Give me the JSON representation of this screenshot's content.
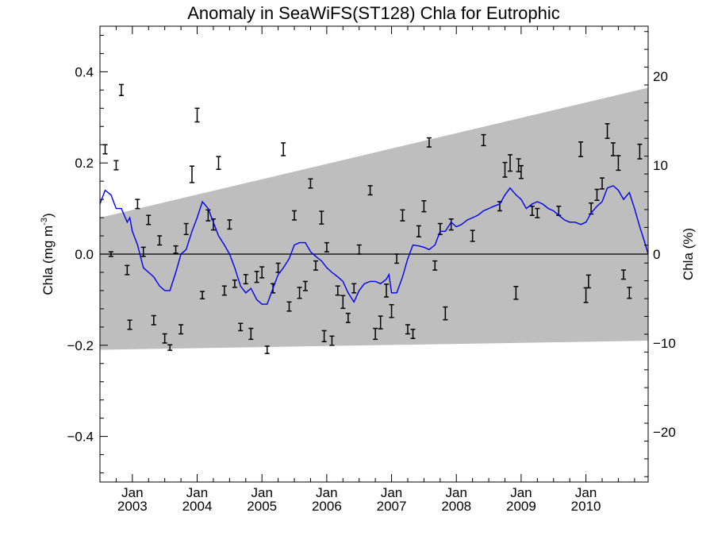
{
  "chart_data": {
    "type": "line",
    "title": "Anomaly in SeaWiFS(ST128) Chla for Eutrophic",
    "ylabel_left": "Chla (mg m",
    "ylabel_left_sup": "-3",
    "ylabel_left_close": ")",
    "ylabel_right": "Chla (%)",
    "xlim": [
      2002.5,
      2010.96
    ],
    "ylim_left": [
      -0.5,
      0.5
    ],
    "ylim_right": [
      -25.6,
      25.6
    ],
    "grid": false,
    "x_ticks": [
      {
        "x": 2003.0,
        "month": "Jan",
        "year": "2003"
      },
      {
        "x": 2004.0,
        "month": "Jan",
        "year": "2004"
      },
      {
        "x": 2005.0,
        "month": "Jan",
        "year": "2005"
      },
      {
        "x": 2006.0,
        "month": "Jan",
        "year": "2006"
      },
      {
        "x": 2007.0,
        "month": "Jan",
        "year": "2007"
      },
      {
        "x": 2008.0,
        "month": "Jan",
        "year": "2008"
      },
      {
        "x": 2009.0,
        "month": "Jan",
        "year": "2009"
      },
      {
        "x": 2010.0,
        "month": "Jan",
        "year": "2010"
      }
    ],
    "y_ticks_left": [
      {
        "v": -0.4,
        "label": "−0.4"
      },
      {
        "v": -0.2,
        "label": "−0.2"
      },
      {
        "v": 0.0,
        "label": "0.0"
      },
      {
        "v": 0.2,
        "label": "0.2"
      },
      {
        "v": 0.4,
        "label": "0.4"
      }
    ],
    "y_ticks_right": [
      {
        "v": -20,
        "label": "−20"
      },
      {
        "v": -10,
        "label": "−10"
      },
      {
        "v": 0,
        "label": "0"
      },
      {
        "v": 10,
        "label": "10"
      },
      {
        "v": 20,
        "label": "20"
      }
    ],
    "trend_band": {
      "x": [
        2002.5,
        2010.96
      ],
      "upper": [
        0.08,
        0.365
      ],
      "lower": [
        -0.21,
        -0.19
      ]
    },
    "zero_line": 0.0,
    "series": [
      {
        "type": "line",
        "color": "#0000ee",
        "x": [
          2002.5,
          2002.58,
          2002.67,
          2002.75,
          2002.83,
          2002.92,
          2002.96,
          2003.0,
          2003.08,
          2003.17,
          2003.25,
          2003.33,
          2003.42,
          2003.5,
          2003.58,
          2003.67,
          2003.75,
          2003.83,
          2003.92,
          2004.0,
          2004.08,
          2004.17,
          2004.25,
          2004.33,
          2004.42,
          2004.5,
          2004.58,
          2004.67,
          2004.75,
          2004.83,
          2004.92,
          2005.0,
          2005.08,
          2005.17,
          2005.25,
          2005.33,
          2005.42,
          2005.5,
          2005.58,
          2005.67,
          2005.75,
          2005.83,
          2005.92,
          2006.0,
          2006.08,
          2006.17,
          2006.25,
          2006.33,
          2006.42,
          2006.5,
          2006.58,
          2006.67,
          2006.75,
          2006.83,
          2006.92,
          2006.96,
          2007.0,
          2007.08,
          2007.17,
          2007.25,
          2007.33,
          2007.42,
          2007.5,
          2007.58,
          2007.67,
          2007.75,
          2007.83,
          2007.92,
          2008.0,
          2008.08,
          2008.17,
          2008.25,
          2008.33,
          2008.42,
          2008.5,
          2008.58,
          2008.67,
          2008.75,
          2008.83,
          2008.92,
          2009.0,
          2009.08,
          2009.17,
          2009.25,
          2009.33,
          2009.42,
          2009.5,
          2009.58,
          2009.67,
          2009.75,
          2009.83,
          2009.92,
          2010.0,
          2010.08,
          2010.17,
          2010.25,
          2010.33,
          2010.42,
          2010.5,
          2010.58,
          2010.67,
          2010.75,
          2010.83,
          2010.92,
          2010.96
        ],
        "y": [
          0.11,
          0.14,
          0.13,
          0.1,
          0.1,
          0.07,
          0.08,
          0.05,
          0.02,
          -0.03,
          -0.04,
          -0.05,
          -0.07,
          -0.08,
          -0.08,
          -0.04,
          0.0,
          0.01,
          0.05,
          0.08,
          0.115,
          0.1,
          0.07,
          0.04,
          0.02,
          0.0,
          -0.03,
          -0.07,
          -0.085,
          -0.075,
          -0.1,
          -0.11,
          -0.11,
          -0.075,
          -0.045,
          -0.03,
          -0.01,
          0.02,
          0.025,
          0.025,
          0.005,
          -0.005,
          -0.015,
          -0.03,
          -0.04,
          -0.05,
          -0.06,
          -0.085,
          -0.105,
          -0.08,
          -0.065,
          -0.06,
          -0.06,
          -0.065,
          -0.055,
          -0.045,
          -0.085,
          -0.085,
          -0.05,
          -0.01,
          0.02,
          0.018,
          0.015,
          0.01,
          0.02,
          0.05,
          0.05,
          0.07,
          0.06,
          0.065,
          0.075,
          0.08,
          0.085,
          0.095,
          0.1,
          0.105,
          0.11,
          0.13,
          0.145,
          0.13,
          0.12,
          0.1,
          0.11,
          0.115,
          0.11,
          0.1,
          0.095,
          0.085,
          0.075,
          0.07,
          0.07,
          0.065,
          0.07,
          0.09,
          0.105,
          0.115,
          0.145,
          0.15,
          0.14,
          0.12,
          0.135,
          0.1,
          0.06,
          0.02,
          0.0
        ]
      },
      {
        "type": "errorbar",
        "color": "#000000",
        "points": [
          {
            "x": 2002.58,
            "y": 0.23,
            "err": 0.01
          },
          {
            "x": 2002.67,
            "y": 0.0,
            "err": 0.005
          },
          {
            "x": 2002.75,
            "y": 0.195,
            "err": 0.01
          },
          {
            "x": 2002.83,
            "y": 0.36,
            "err": 0.012
          },
          {
            "x": 2002.92,
            "y": -0.035,
            "err": 0.01
          },
          {
            "x": 2002.96,
            "y": -0.155,
            "err": 0.01
          },
          {
            "x": 2003.08,
            "y": 0.11,
            "err": 0.01
          },
          {
            "x": 2003.17,
            "y": 0.005,
            "err": 0.01
          },
          {
            "x": 2003.25,
            "y": 0.075,
            "err": 0.01
          },
          {
            "x": 2003.33,
            "y": -0.145,
            "err": 0.01
          },
          {
            "x": 2003.42,
            "y": 0.03,
            "err": 0.01
          },
          {
            "x": 2003.5,
            "y": -0.185,
            "err": 0.01
          },
          {
            "x": 2003.58,
            "y": -0.205,
            "err": 0.006
          },
          {
            "x": 2003.67,
            "y": 0.01,
            "err": 0.008
          },
          {
            "x": 2003.75,
            "y": -0.165,
            "err": 0.01
          },
          {
            "x": 2003.83,
            "y": 0.055,
            "err": 0.012
          },
          {
            "x": 2003.92,
            "y": 0.175,
            "err": 0.018
          },
          {
            "x": 2004.0,
            "y": 0.305,
            "err": 0.015
          },
          {
            "x": 2004.08,
            "y": -0.09,
            "err": 0.008
          },
          {
            "x": 2004.17,
            "y": 0.085,
            "err": 0.012
          },
          {
            "x": 2004.25,
            "y": 0.065,
            "err": 0.012
          },
          {
            "x": 2004.33,
            "y": 0.2,
            "err": 0.014
          },
          {
            "x": 2004.42,
            "y": -0.08,
            "err": 0.01
          },
          {
            "x": 2004.5,
            "y": 0.065,
            "err": 0.01
          },
          {
            "x": 2004.58,
            "y": -0.065,
            "err": 0.008
          },
          {
            "x": 2004.67,
            "y": -0.16,
            "err": 0.008
          },
          {
            "x": 2004.75,
            "y": -0.055,
            "err": 0.01
          },
          {
            "x": 2004.83,
            "y": -0.175,
            "err": 0.012
          },
          {
            "x": 2004.92,
            "y": -0.05,
            "err": 0.012
          },
          {
            "x": 2005.0,
            "y": -0.04,
            "err": 0.012
          },
          {
            "x": 2005.08,
            "y": -0.21,
            "err": 0.008
          },
          {
            "x": 2005.17,
            "y": -0.075,
            "err": 0.01
          },
          {
            "x": 2005.25,
            "y": -0.03,
            "err": 0.01
          },
          {
            "x": 2005.33,
            "y": 0.23,
            "err": 0.014
          },
          {
            "x": 2005.42,
            "y": -0.115,
            "err": 0.01
          },
          {
            "x": 2005.5,
            "y": 0.085,
            "err": 0.01
          },
          {
            "x": 2005.58,
            "y": -0.085,
            "err": 0.012
          },
          {
            "x": 2005.67,
            "y": -0.07,
            "err": 0.01
          },
          {
            "x": 2005.75,
            "y": 0.155,
            "err": 0.01
          },
          {
            "x": 2005.83,
            "y": -0.025,
            "err": 0.01
          },
          {
            "x": 2005.92,
            "y": 0.08,
            "err": 0.014
          },
          {
            "x": 2005.96,
            "y": -0.18,
            "err": 0.012
          },
          {
            "x": 2006.0,
            "y": 0.015,
            "err": 0.01
          },
          {
            "x": 2006.08,
            "y": -0.19,
            "err": 0.01
          },
          {
            "x": 2006.17,
            "y": -0.08,
            "err": 0.01
          },
          {
            "x": 2006.25,
            "y": -0.105,
            "err": 0.014
          },
          {
            "x": 2006.33,
            "y": -0.14,
            "err": 0.01
          },
          {
            "x": 2006.42,
            "y": -0.075,
            "err": 0.01
          },
          {
            "x": 2006.5,
            "y": 0.01,
            "err": 0.01
          },
          {
            "x": 2006.67,
            "y": 0.14,
            "err": 0.01
          },
          {
            "x": 2006.75,
            "y": -0.175,
            "err": 0.012
          },
          {
            "x": 2006.83,
            "y": -0.15,
            "err": 0.014
          },
          {
            "x": 2006.92,
            "y": -0.08,
            "err": 0.014
          },
          {
            "x": 2007.0,
            "y": -0.125,
            "err": 0.014
          },
          {
            "x": 2007.08,
            "y": -0.01,
            "err": 0.01
          },
          {
            "x": 2007.17,
            "y": 0.085,
            "err": 0.012
          },
          {
            "x": 2007.25,
            "y": -0.165,
            "err": 0.01
          },
          {
            "x": 2007.33,
            "y": -0.175,
            "err": 0.01
          },
          {
            "x": 2007.42,
            "y": 0.05,
            "err": 0.012
          },
          {
            "x": 2007.5,
            "y": 0.105,
            "err": 0.012
          },
          {
            "x": 2007.58,
            "y": 0.245,
            "err": 0.01
          },
          {
            "x": 2007.67,
            "y": -0.025,
            "err": 0.01
          },
          {
            "x": 2007.75,
            "y": 0.055,
            "err": 0.012
          },
          {
            "x": 2007.83,
            "y": -0.13,
            "err": 0.014
          },
          {
            "x": 2007.92,
            "y": 0.065,
            "err": 0.012
          },
          {
            "x": 2008.25,
            "y": 0.04,
            "err": 0.012
          },
          {
            "x": 2008.42,
            "y": 0.25,
            "err": 0.012
          },
          {
            "x": 2008.67,
            "y": 0.105,
            "err": 0.01
          },
          {
            "x": 2008.75,
            "y": 0.185,
            "err": 0.016
          },
          {
            "x": 2008.83,
            "y": 0.2,
            "err": 0.018
          },
          {
            "x": 2008.92,
            "y": -0.085,
            "err": 0.014
          },
          {
            "x": 2008.96,
            "y": 0.195,
            "err": 0.014
          },
          {
            "x": 2009.0,
            "y": 0.18,
            "err": 0.014
          },
          {
            "x": 2009.17,
            "y": 0.095,
            "err": 0.01
          },
          {
            "x": 2009.25,
            "y": 0.09,
            "err": 0.01
          },
          {
            "x": 2009.58,
            "y": 0.095,
            "err": 0.01
          },
          {
            "x": 2009.92,
            "y": 0.23,
            "err": 0.016
          },
          {
            "x": 2010.0,
            "y": -0.09,
            "err": 0.016
          },
          {
            "x": 2010.04,
            "y": -0.06,
            "err": 0.014
          },
          {
            "x": 2010.08,
            "y": 0.1,
            "err": 0.012
          },
          {
            "x": 2010.17,
            "y": 0.13,
            "err": 0.012
          },
          {
            "x": 2010.25,
            "y": 0.155,
            "err": 0.012
          },
          {
            "x": 2010.33,
            "y": 0.27,
            "err": 0.016
          },
          {
            "x": 2010.42,
            "y": 0.23,
            "err": 0.014
          },
          {
            "x": 2010.5,
            "y": 0.2,
            "err": 0.016
          },
          {
            "x": 2010.58,
            "y": -0.045,
            "err": 0.01
          },
          {
            "x": 2010.67,
            "y": -0.085,
            "err": 0.012
          },
          {
            "x": 2010.83,
            "y": 0.225,
            "err": 0.016
          }
        ]
      }
    ]
  }
}
